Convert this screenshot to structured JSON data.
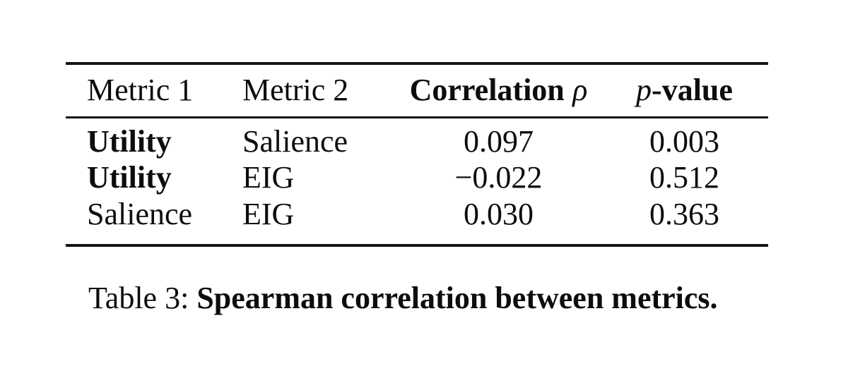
{
  "table": {
    "headers": {
      "metric1": "Metric 1",
      "metric2": "Metric 2",
      "correlation_word": "Correlation",
      "correlation_symbol": "ρ",
      "pvalue_p": "p",
      "pvalue_suffix": "-value"
    },
    "rows": [
      {
        "metric1": "Utility",
        "metric2": "Salience",
        "correlation": "0.097",
        "pvalue": "0.003"
      },
      {
        "metric1": "Utility",
        "metric2": "EIG",
        "correlation": "−0.022",
        "pvalue": "0.512"
      },
      {
        "metric1": "Salience",
        "metric2": "EIG",
        "correlation": "0.030",
        "pvalue": "0.363"
      }
    ]
  },
  "caption": {
    "label": "Table 3:",
    "text": "Spearman correlation between metrics."
  },
  "colors": {
    "background": "#ffffff",
    "text": "#0d0d0d",
    "rule": "#141414"
  }
}
